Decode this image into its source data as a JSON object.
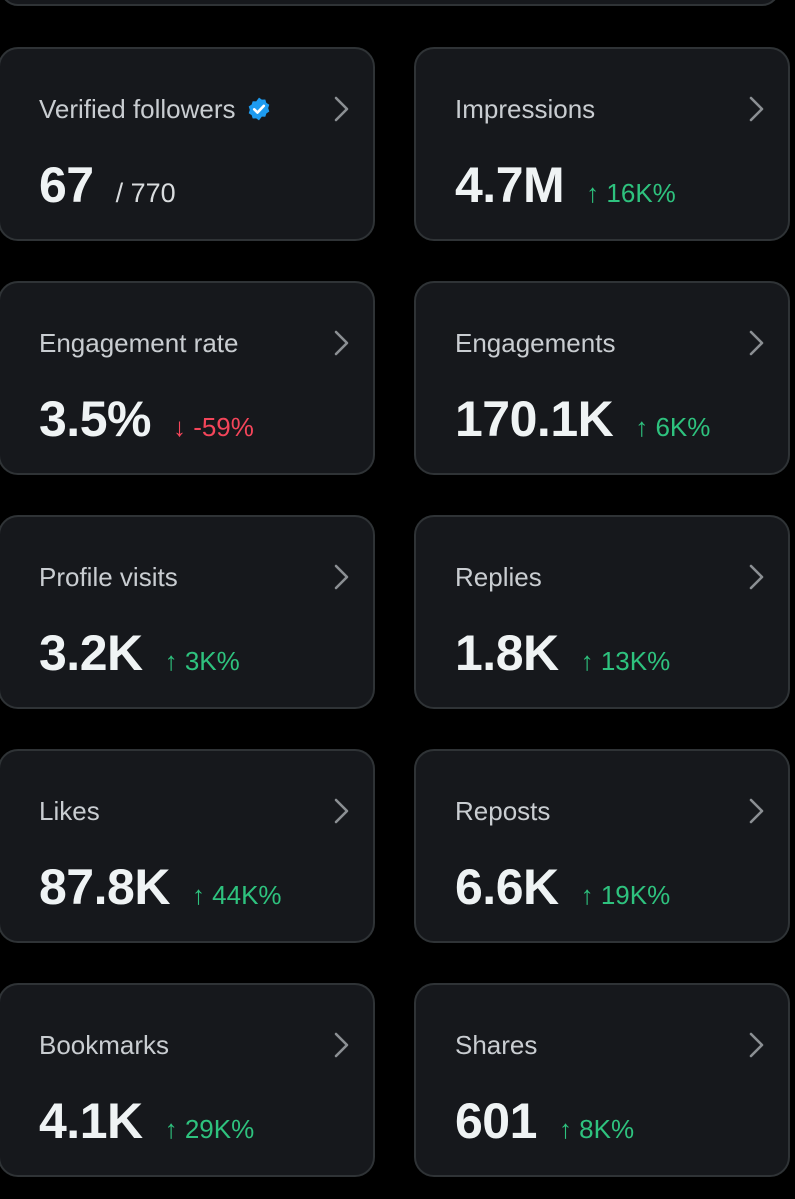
{
  "colors": {
    "background": "#000000",
    "card_background": "#16181c",
    "card_border": "#2f3336",
    "label": "#c9cdd1",
    "value": "#eff3f4",
    "positive": "#2ec27e",
    "negative": "#f4455a",
    "verified": "#1d9bf0"
  },
  "icons": {
    "verified": "verified-badge-icon",
    "chevron": "chevron-right-icon",
    "arrow_up": "↑",
    "arrow_down": "↓"
  },
  "metrics": [
    {
      "label": "Verified followers",
      "value": "67",
      "total": "/ 770"
    },
    {
      "label": "Impressions",
      "value": "4.7M",
      "delta": "↑ 16K%",
      "direction": "up"
    },
    {
      "label": "Engagement rate",
      "value": "3.5%",
      "delta": "↓ -59%",
      "direction": "down"
    },
    {
      "label": "Engagements",
      "value": "170.1K",
      "delta": "↑ 6K%",
      "direction": "up"
    },
    {
      "label": "Profile visits",
      "value": "3.2K",
      "delta": "↑ 3K%",
      "direction": "up"
    },
    {
      "label": "Replies",
      "value": "1.8K",
      "delta": "↑ 13K%",
      "direction": "up"
    },
    {
      "label": "Likes",
      "value": "87.8K",
      "delta": "↑ 44K%",
      "direction": "up"
    },
    {
      "label": "Reposts",
      "value": "6.6K",
      "delta": "↑ 19K%",
      "direction": "up"
    },
    {
      "label": "Bookmarks",
      "value": "4.1K",
      "delta": "↑ 29K%",
      "direction": "up"
    },
    {
      "label": "Shares",
      "value": "601",
      "delta": "↑ 8K%",
      "direction": "up"
    }
  ]
}
